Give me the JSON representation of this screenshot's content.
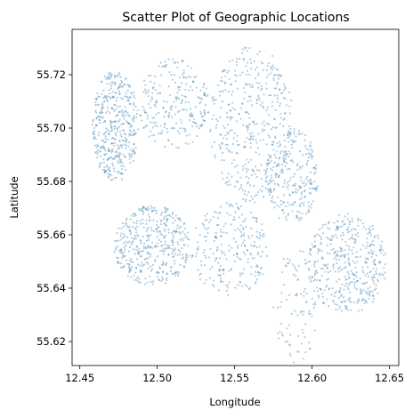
{
  "chart_data": {
    "type": "scatter",
    "title": "Scatter Plot of Geographic Locations",
    "xlabel": "Longitude",
    "ylabel": "Latitude",
    "xlim": [
      12.445,
      12.656
    ],
    "ylim": [
      55.611,
      55.737
    ],
    "xticks": [
      12.45,
      12.5,
      12.55,
      12.6,
      12.65
    ],
    "xtick_labels": [
      "12.45",
      "12.50",
      "12.55",
      "12.60",
      "12.65"
    ],
    "yticks": [
      55.62,
      55.64,
      55.66,
      55.68,
      55.7,
      55.72
    ],
    "ytick_labels": [
      "55.62",
      "55.64",
      "55.66",
      "55.68",
      "55.70",
      "55.72"
    ],
    "grid": false,
    "legend": "none",
    "marker_color": "#1f77b4",
    "marker_alpha": 0.45,
    "series": [
      {
        "clusters": [
          {
            "x": [
              12.458,
              12.488
            ],
            "y": [
              55.68,
              55.722
            ],
            "density": "high",
            "region": "northwest"
          },
          {
            "x": [
              12.487,
              12.534
            ],
            "y": [
              55.692,
              55.726
            ],
            "density": "medium",
            "region": "north-central"
          },
          {
            "x": [
              12.534,
              12.588
            ],
            "y": [
              55.672,
              55.731
            ],
            "density": "high",
            "region": "northeast"
          },
          {
            "x": [
              12.57,
              12.604
            ],
            "y": [
              55.664,
              55.7
            ],
            "density": "medium",
            "region": "east-central"
          },
          {
            "x": [
              12.472,
              12.522
            ],
            "y": [
              55.641,
              55.671
            ],
            "density": "high",
            "region": "southwest"
          },
          {
            "x": [
              12.522,
              12.572
            ],
            "y": [
              55.637,
              55.672
            ],
            "density": "medium",
            "region": "south-central"
          },
          {
            "x": [
              12.575,
              12.605
            ],
            "y": [
              55.612,
              55.655
            ],
            "density": "low",
            "region": "south"
          },
          {
            "x": [
              12.597,
              12.648
            ],
            "y": [
              55.63,
              55.668
            ],
            "density": "high",
            "region": "southeast"
          }
        ]
      }
    ]
  }
}
